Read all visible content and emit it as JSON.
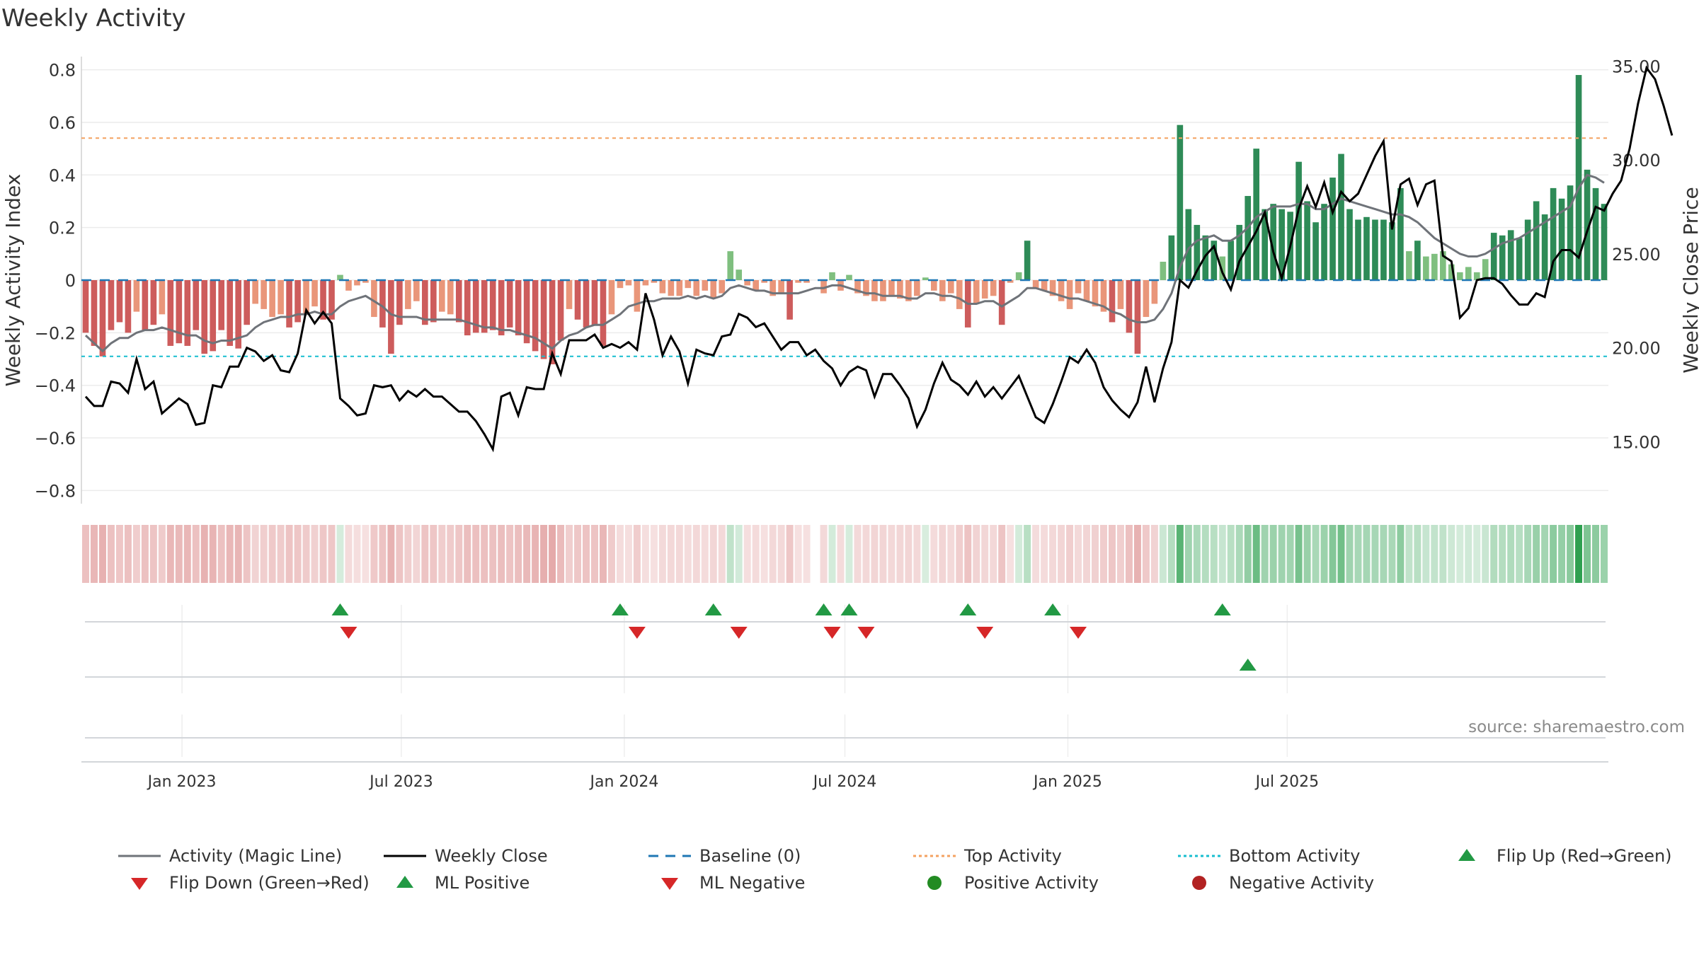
{
  "title": "Weekly Activity",
  "source": "source: sharemaestro.com",
  "colors": {
    "bar_pos_strong": "#2e8b57",
    "bar_pos_light": "#7fbf7f",
    "bar_neg_strong": "#cd5c5c",
    "bar_neg_light": "#e9967a",
    "magic": "#6f7379",
    "close": "#000000",
    "baseline": "#1f77b4",
    "top": "#f4a261",
    "bottom": "#17becf",
    "up": "#229944",
    "down": "#d62728"
  },
  "chart_data": {
    "type": "bar+line",
    "title": "Weekly Activity",
    "ylabel_left": "Weekly Activity Index",
    "ylabel_right": "Weekly Close Price",
    "ylim_left": [
      -0.85,
      0.85
    ],
    "ylim_right": [
      11.7,
      35.5
    ],
    "yticks_left": [
      "0.8",
      "0.6",
      "0.4",
      "0.2",
      "0",
      "−0.2",
      "−0.4",
      "−0.6",
      "−0.8"
    ],
    "yticks_right": [
      "35.00",
      "30.00",
      "25.00",
      "20.00",
      "15.00"
    ],
    "xticks": [
      "Jan 2023",
      "Jul 2023",
      "Jan 2024",
      "Jul 2024",
      "Jan 2025",
      "Jul 2025"
    ],
    "top_activity": 0.54,
    "bottom_activity": -0.29,
    "start_date": "2022-10-10",
    "activity": [
      -0.2,
      -0.25,
      -0.29,
      -0.19,
      -0.16,
      -0.2,
      -0.12,
      -0.19,
      -0.17,
      -0.13,
      -0.25,
      -0.24,
      -0.25,
      -0.19,
      -0.28,
      -0.27,
      -0.19,
      -0.25,
      -0.26,
      -0.17,
      -0.09,
      -0.11,
      -0.14,
      -0.13,
      -0.18,
      -0.16,
      -0.13,
      -0.1,
      -0.15,
      -0.15,
      0.02,
      -0.04,
      -0.02,
      -0.01,
      -0.14,
      -0.18,
      -0.28,
      -0.17,
      -0.11,
      -0.08,
      -0.17,
      -0.16,
      -0.12,
      -0.13,
      -0.16,
      -0.21,
      -0.2,
      -0.2,
      -0.19,
      -0.21,
      -0.18,
      -0.21,
      -0.24,
      -0.27,
      -0.3,
      -0.32,
      -0.23,
      -0.11,
      -0.15,
      -0.18,
      -0.17,
      -0.25,
      -0.13,
      -0.03,
      -0.02,
      -0.12,
      -0.02,
      -0.01,
      -0.05,
      -0.06,
      -0.06,
      -0.03,
      -0.06,
      -0.04,
      -0.07,
      -0.05,
      0.11,
      0.04,
      -0.02,
      -0.04,
      -0.01,
      -0.06,
      -0.05,
      -0.15,
      -0.01,
      -0.01,
      0.0,
      -0.05,
      0.03,
      -0.04,
      0.02,
      -0.05,
      -0.06,
      -0.08,
      -0.08,
      -0.06,
      -0.07,
      -0.08,
      -0.06,
      0.01,
      -0.04,
      -0.08,
      -0.05,
      -0.11,
      -0.18,
      -0.09,
      -0.07,
      -0.06,
      -0.17,
      -0.01,
      0.03,
      0.15,
      -0.03,
      -0.04,
      -0.06,
      -0.08,
      -0.11,
      -0.05,
      -0.08,
      -0.1,
      -0.12,
      -0.16,
      -0.11,
      -0.2,
      -0.28,
      -0.14,
      -0.09,
      0.07,
      0.17,
      0.59,
      0.27,
      0.21,
      0.17,
      0.15,
      0.09,
      0.15,
      0.21,
      0.32,
      0.5,
      0.27,
      0.29,
      0.27,
      0.26,
      0.45,
      0.3,
      0.22,
      0.29,
      0.39,
      0.48,
      0.27,
      0.23,
      0.24,
      0.23,
      0.23,
      0.22,
      0.35,
      0.11,
      0.15,
      0.09,
      0.1,
      0.11,
      0.06,
      0.03,
      0.05,
      0.03,
      0.08,
      0.18,
      0.17,
      0.19,
      0.16,
      0.23,
      0.3,
      0.25,
      0.35,
      0.31,
      0.36,
      0.78,
      0.42,
      0.35,
      0.29
    ],
    "close": [
      17.4,
      16.9,
      16.9,
      18.2,
      18.1,
      17.6,
      19.4,
      17.8,
      18.2,
      16.5,
      16.9,
      17.3,
      17.0,
      15.9,
      16.0,
      18.0,
      17.9,
      19.0,
      19.0,
      20.0,
      19.8,
      19.3,
      19.6,
      18.8,
      18.7,
      19.7,
      22.0,
      21.3,
      21.9,
      21.3,
      17.3,
      16.9,
      16.4,
      16.5,
      18.0,
      17.9,
      18.0,
      17.2,
      17.7,
      17.4,
      17.8,
      17.4,
      17.4,
      17.0,
      16.6,
      16.6,
      16.1,
      15.4,
      14.6,
      17.4,
      17.6,
      16.4,
      17.9,
      17.8,
      17.8,
      19.7,
      18.6,
      20.4,
      20.4,
      20.4,
      20.7,
      20.0,
      20.2,
      20.0,
      20.3,
      19.9,
      22.9,
      21.5,
      19.6,
      20.6,
      19.8,
      18.1,
      19.9,
      19.7,
      19.6,
      20.6,
      20.7,
      21.8,
      21.6,
      21.1,
      21.3,
      20.6,
      19.9,
      20.3,
      20.3,
      19.6,
      19.9,
      19.3,
      18.9,
      18.0,
      18.7,
      19.0,
      18.8,
      17.4,
      18.6,
      18.6,
      18.0,
      17.3,
      15.8,
      16.7,
      18.1,
      19.2,
      18.3,
      18.0,
      17.5,
      18.2,
      17.4,
      17.9,
      17.3,
      17.9,
      18.5,
      17.4,
      16.3,
      16.0,
      17.0,
      18.2,
      19.5,
      19.2,
      19.9,
      19.2,
      17.9,
      17.2,
      16.7,
      16.3,
      17.1,
      19.0,
      17.1,
      18.9,
      20.3,
      23.6,
      23.2,
      24.1,
      24.9,
      25.4,
      24.0,
      23.1,
      24.6,
      25.4,
      26.2,
      27.2,
      25.1,
      23.7,
      25.4,
      27.4,
      28.6,
      27.5,
      28.8,
      27.2,
      28.3,
      27.8,
      28.2,
      29.2,
      30.2,
      31.0,
      26.3,
      28.7,
      29.0,
      27.6,
      28.7,
      28.9,
      24.9,
      24.6,
      21.6,
      22.1,
      23.6,
      23.7,
      23.7,
      23.4,
      22.8,
      22.3,
      22.3,
      22.9,
      22.7,
      24.6,
      25.2,
      25.2,
      24.8,
      26.2,
      27.5,
      27.3,
      28.2,
      28.9,
      30.6,
      33.0,
      34.9,
      34.3,
      32.9,
      31.3
    ],
    "magic": [
      -0.21,
      -0.24,
      -0.27,
      -0.24,
      -0.22,
      -0.22,
      -0.2,
      -0.19,
      -0.19,
      -0.18,
      -0.19,
      -0.2,
      -0.21,
      -0.21,
      -0.23,
      -0.24,
      -0.23,
      -0.23,
      -0.22,
      -0.21,
      -0.18,
      -0.16,
      -0.15,
      -0.14,
      -0.14,
      -0.13,
      -0.13,
      -0.12,
      -0.13,
      -0.13,
      -0.1,
      -0.08,
      -0.07,
      -0.06,
      -0.08,
      -0.1,
      -0.13,
      -0.14,
      -0.14,
      -0.14,
      -0.15,
      -0.15,
      -0.15,
      -0.15,
      -0.15,
      -0.16,
      -0.17,
      -0.18,
      -0.18,
      -0.19,
      -0.19,
      -0.2,
      -0.21,
      -0.22,
      -0.24,
      -0.26,
      -0.23,
      -0.21,
      -0.2,
      -0.18,
      -0.17,
      -0.17,
      -0.15,
      -0.13,
      -0.1,
      -0.09,
      -0.08,
      -0.08,
      -0.07,
      -0.07,
      -0.07,
      -0.06,
      -0.07,
      -0.06,
      -0.07,
      -0.06,
      -0.03,
      -0.02,
      -0.03,
      -0.04,
      -0.04,
      -0.05,
      -0.05,
      -0.05,
      -0.05,
      -0.04,
      -0.03,
      -0.03,
      -0.02,
      -0.02,
      -0.03,
      -0.04,
      -0.05,
      -0.05,
      -0.06,
      -0.06,
      -0.06,
      -0.07,
      -0.07,
      -0.05,
      -0.05,
      -0.06,
      -0.06,
      -0.07,
      -0.09,
      -0.09,
      -0.08,
      -0.08,
      -0.1,
      -0.08,
      -0.06,
      -0.03,
      -0.03,
      -0.04,
      -0.05,
      -0.06,
      -0.07,
      -0.07,
      -0.08,
      -0.09,
      -0.1,
      -0.12,
      -0.13,
      -0.15,
      -0.16,
      -0.16,
      -0.15,
      -0.11,
      -0.05,
      0.05,
      0.12,
      0.15,
      0.16,
      0.17,
      0.15,
      0.15,
      0.17,
      0.2,
      0.24,
      0.26,
      0.28,
      0.28,
      0.28,
      0.29,
      0.29,
      0.27,
      0.27,
      0.29,
      0.31,
      0.3,
      0.29,
      0.28,
      0.27,
      0.26,
      0.25,
      0.25,
      0.24,
      0.22,
      0.19,
      0.16,
      0.14,
      0.12,
      0.1,
      0.09,
      0.09,
      0.1,
      0.12,
      0.14,
      0.15,
      0.16,
      0.18,
      0.2,
      0.22,
      0.24,
      0.26,
      0.28,
      0.35,
      0.4,
      0.39,
      0.37
    ],
    "strip_row": "strip of colored cells, one per week, green when activity positive and red when negative",
    "flip_up_weeks": [
      30,
      63,
      74,
      87,
      90,
      104,
      114,
      134
    ],
    "flip_down_weeks": [
      31,
      65,
      77,
      88,
      92,
      106,
      117
    ],
    "ml_positive_weeks": [
      137
    ],
    "legend": [
      {
        "label": "Activity (Magic Line)",
        "symbol": "line-gray"
      },
      {
        "label": "Weekly Close",
        "symbol": "line-black"
      },
      {
        "label": "Baseline (0)",
        "symbol": "dash-blue"
      },
      {
        "label": "Top Activity",
        "symbol": "dot-orange"
      },
      {
        "label": "Bottom Activity",
        "symbol": "dot-cyan"
      },
      {
        "label": "Flip Up (Red→Green)",
        "symbol": "tri-up"
      },
      {
        "label": "Flip Down (Green→Red)",
        "symbol": "tri-down"
      },
      {
        "label": "ML Positive",
        "symbol": "tri-up"
      },
      {
        "label": "ML Negative",
        "symbol": "tri-down"
      },
      {
        "label": "Positive Activity",
        "symbol": "dot-green"
      },
      {
        "label": "Negative Activity",
        "symbol": "dot-red"
      }
    ]
  }
}
